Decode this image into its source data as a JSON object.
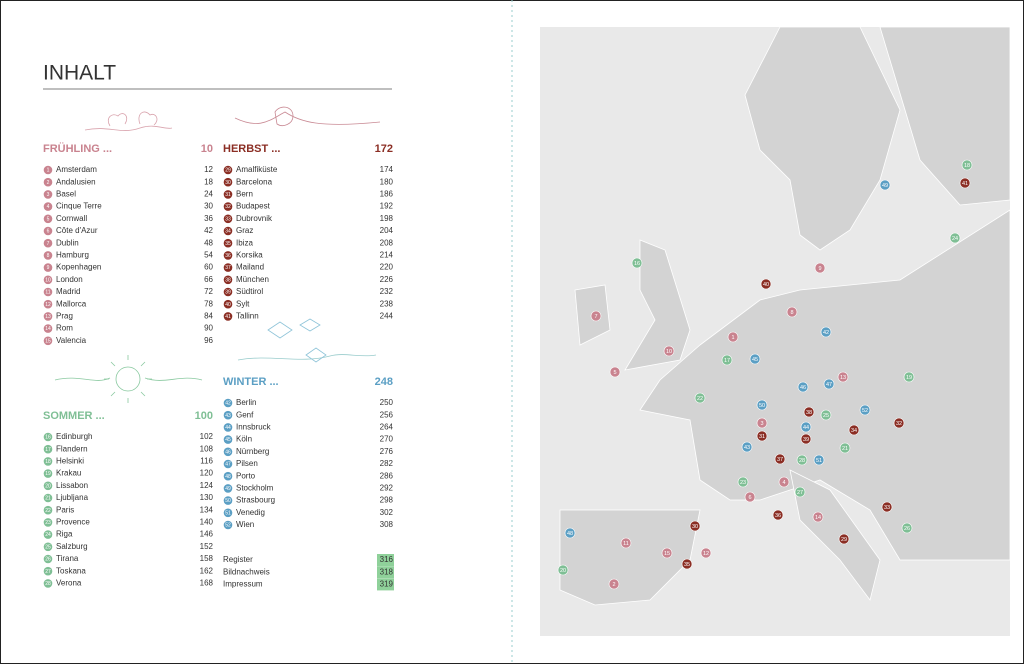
{
  "title": "INHALT",
  "sections": [
    {
      "name": "FRÜHLING ...",
      "page": 10,
      "color": "#c9838f",
      "entries": [
        {
          "num": 1,
          "name": "Amsterdam",
          "page": 12
        },
        {
          "num": 2,
          "name": "Andalusien",
          "page": 18
        },
        {
          "num": 3,
          "name": "Basel",
          "page": 24
        },
        {
          "num": 4,
          "name": "Cinque Terre",
          "page": 30
        },
        {
          "num": 5,
          "name": "Cornwall",
          "page": 36
        },
        {
          "num": 6,
          "name": "Côte d'Azur",
          "page": 42
        },
        {
          "num": 7,
          "name": "Dublin",
          "page": 48
        },
        {
          "num": 8,
          "name": "Hamburg",
          "page": 54
        },
        {
          "num": 9,
          "name": "Kopenhagen",
          "page": 60
        },
        {
          "num": 10,
          "name": "London",
          "page": 66
        },
        {
          "num": 11,
          "name": "Madrid",
          "page": 72
        },
        {
          "num": 12,
          "name": "Mallorca",
          "page": 78
        },
        {
          "num": 13,
          "name": "Prag",
          "page": 84
        },
        {
          "num": 14,
          "name": "Rom",
          "page": 90
        },
        {
          "num": 15,
          "name": "Valencia",
          "page": 96
        }
      ]
    },
    {
      "name": "SOMMER ...",
      "page": 100,
      "color": "#7fbf95",
      "entries": [
        {
          "num": 16,
          "name": "Edinburgh",
          "page": 102
        },
        {
          "num": 17,
          "name": "Flandern",
          "page": 108
        },
        {
          "num": 18,
          "name": "Helsinki",
          "page": 116
        },
        {
          "num": 19,
          "name": "Krakau",
          "page": 120
        },
        {
          "num": 20,
          "name": "Lissabon",
          "page": 124
        },
        {
          "num": 21,
          "name": "Ljubljana",
          "page": 130
        },
        {
          "num": 22,
          "name": "Paris",
          "page": 134
        },
        {
          "num": 23,
          "name": "Provence",
          "page": 140
        },
        {
          "num": 24,
          "name": "Riga",
          "page": 146
        },
        {
          "num": 25,
          "name": "Salzburg",
          "page": 152
        },
        {
          "num": 26,
          "name": "Tirana",
          "page": 158
        },
        {
          "num": 27,
          "name": "Toskana",
          "page": 162
        },
        {
          "num": 28,
          "name": "Verona",
          "page": 168
        }
      ]
    },
    {
      "name": "HERBST ...",
      "page": 172,
      "color": "#8b2e24",
      "entries": [
        {
          "num": 29,
          "name": "Amalfiküste",
          "page": 174
        },
        {
          "num": 30,
          "name": "Barcelona",
          "page": 180
        },
        {
          "num": 31,
          "name": "Bern",
          "page": 186
        },
        {
          "num": 32,
          "name": "Budapest",
          "page": 192
        },
        {
          "num": 33,
          "name": "Dubrovnik",
          "page": 198
        },
        {
          "num": 34,
          "name": "Graz",
          "page": 204
        },
        {
          "num": 35,
          "name": "Ibiza",
          "page": 208
        },
        {
          "num": 36,
          "name": "Korsika",
          "page": 214
        },
        {
          "num": 37,
          "name": "Mailand",
          "page": 220
        },
        {
          "num": 38,
          "name": "München",
          "page": 226
        },
        {
          "num": 39,
          "name": "Südtirol",
          "page": 232
        },
        {
          "num": 40,
          "name": "Sylt",
          "page": 238
        },
        {
          "num": 41,
          "name": "Tallinn",
          "page": 244
        }
      ]
    },
    {
      "name": "WINTER ...",
      "page": 248,
      "color": "#5b9fc4",
      "entries": [
        {
          "num": 42,
          "name": "Berlin",
          "page": 250
        },
        {
          "num": 43,
          "name": "Genf",
          "page": 256
        },
        {
          "num": 44,
          "name": "Innsbruck",
          "page": 264
        },
        {
          "num": 45,
          "name": "Köln",
          "page": 270
        },
        {
          "num": 46,
          "name": "Nürnberg",
          "page": 276
        },
        {
          "num": 47,
          "name": "Pilsen",
          "page": 282
        },
        {
          "num": 48,
          "name": "Porto",
          "page": 286
        },
        {
          "num": 49,
          "name": "Stockholm",
          "page": 292
        },
        {
          "num": 50,
          "name": "Strasbourg",
          "page": 298
        },
        {
          "num": 51,
          "name": "Venedig",
          "page": 302
        },
        {
          "num": 52,
          "name": "Wien",
          "page": 308
        }
      ]
    }
  ],
  "extras": [
    {
      "name": "Register",
      "page": 316
    },
    {
      "name": "Bildnachweis",
      "page": 318
    },
    {
      "name": "Impressum",
      "page": 319
    }
  ],
  "extras_highlight": "#8fd19a"
}
